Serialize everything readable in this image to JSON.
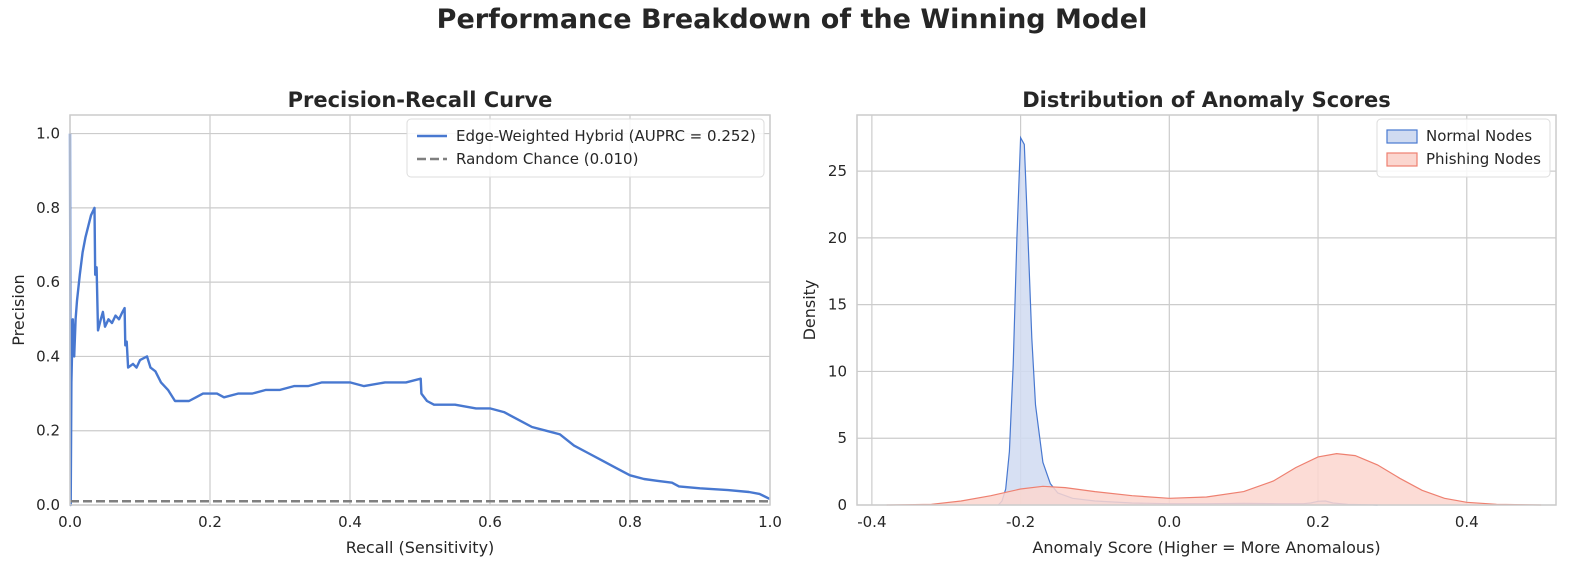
{
  "suptitle": "Performance Breakdown of the Winning Model",
  "chart_data": [
    {
      "type": "line",
      "title": "Precision-Recall Curve",
      "xlabel": "Recall (Sensitivity)",
      "ylabel": "Precision",
      "xlim": [
        0,
        1
      ],
      "ylim": [
        0,
        1.05
      ],
      "xticks": [
        "0.0",
        "0.2",
        "0.4",
        "0.6",
        "0.8",
        "1.0"
      ],
      "yticks": [
        "0.0",
        "0.2",
        "0.4",
        "0.6",
        "0.8",
        "1.0"
      ],
      "grid": true,
      "legend_position": "top-right",
      "series": [
        {
          "name": "Edge-Weighted Hybrid (AUPRC = 0.252)",
          "color": "#4878d0",
          "style": "solid",
          "points": [
            [
              0.0,
              1.0
            ],
            [
              0.001,
              0.0
            ],
            [
              0.002,
              0.33
            ],
            [
              0.004,
              0.5
            ],
            [
              0.006,
              0.4
            ],
            [
              0.008,
              0.5
            ],
            [
              0.01,
              0.55
            ],
            [
              0.014,
              0.62
            ],
            [
              0.018,
              0.68
            ],
            [
              0.022,
              0.72
            ],
            [
              0.026,
              0.75
            ],
            [
              0.03,
              0.78
            ],
            [
              0.035,
              0.8
            ],
            [
              0.036,
              0.62
            ],
            [
              0.038,
              0.64
            ],
            [
              0.04,
              0.47
            ],
            [
              0.044,
              0.5
            ],
            [
              0.047,
              0.52
            ],
            [
              0.05,
              0.48
            ],
            [
              0.055,
              0.5
            ],
            [
              0.06,
              0.49
            ],
            [
              0.065,
              0.51
            ],
            [
              0.07,
              0.5
            ],
            [
              0.075,
              0.52
            ],
            [
              0.078,
              0.53
            ],
            [
              0.079,
              0.43
            ],
            [
              0.081,
              0.44
            ],
            [
              0.083,
              0.37
            ],
            [
              0.09,
              0.38
            ],
            [
              0.095,
              0.37
            ],
            [
              0.1,
              0.39
            ],
            [
              0.11,
              0.4
            ],
            [
              0.115,
              0.37
            ],
            [
              0.122,
              0.36
            ],
            [
              0.13,
              0.33
            ],
            [
              0.14,
              0.31
            ],
            [
              0.15,
              0.28
            ],
            [
              0.16,
              0.28
            ],
            [
              0.17,
              0.28
            ],
            [
              0.18,
              0.29
            ],
            [
              0.19,
              0.3
            ],
            [
              0.2,
              0.3
            ],
            [
              0.21,
              0.3
            ],
            [
              0.22,
              0.29
            ],
            [
              0.24,
              0.3
            ],
            [
              0.26,
              0.3
            ],
            [
              0.28,
              0.31
            ],
            [
              0.3,
              0.31
            ],
            [
              0.32,
              0.32
            ],
            [
              0.34,
              0.32
            ],
            [
              0.36,
              0.33
            ],
            [
              0.38,
              0.33
            ],
            [
              0.4,
              0.33
            ],
            [
              0.42,
              0.32
            ],
            [
              0.45,
              0.33
            ],
            [
              0.48,
              0.33
            ],
            [
              0.501,
              0.34
            ],
            [
              0.502,
              0.3
            ],
            [
              0.51,
              0.28
            ],
            [
              0.52,
              0.27
            ],
            [
              0.55,
              0.27
            ],
            [
              0.58,
              0.26
            ],
            [
              0.6,
              0.26
            ],
            [
              0.62,
              0.25
            ],
            [
              0.64,
              0.23
            ],
            [
              0.66,
              0.21
            ],
            [
              0.68,
              0.2
            ],
            [
              0.7,
              0.19
            ],
            [
              0.72,
              0.16
            ],
            [
              0.74,
              0.14
            ],
            [
              0.76,
              0.12
            ],
            [
              0.78,
              0.1
            ],
            [
              0.8,
              0.08
            ],
            [
              0.82,
              0.07
            ],
            [
              0.84,
              0.065
            ],
            [
              0.86,
              0.06
            ],
            [
              0.87,
              0.05
            ],
            [
              0.9,
              0.045
            ],
            [
              0.94,
              0.04
            ],
            [
              0.97,
              0.035
            ],
            [
              0.985,
              0.03
            ],
            [
              1.0,
              0.016
            ]
          ]
        },
        {
          "name": "Random Chance (0.010)",
          "color": "#7f7f7f",
          "style": "dashed",
          "points": [
            [
              0.0,
              0.01
            ],
            [
              1.0,
              0.01
            ]
          ]
        }
      ]
    },
    {
      "type": "area",
      "title": "Distribution of Anomaly Scores",
      "xlabel": "Anomaly Score (Higher = More Anomalous)",
      "ylabel": "Density",
      "xlim": [
        -0.42,
        0.52
      ],
      "ylim": [
        0,
        29.2
      ],
      "xticks": [
        "-0.4",
        "-0.2",
        "0.0",
        "0.2",
        "0.4"
      ],
      "yticks": [
        "0",
        "5",
        "10",
        "15",
        "20",
        "25"
      ],
      "grid": true,
      "legend_position": "top-right",
      "series": [
        {
          "name": "Normal Nodes",
          "color": "#4878d0",
          "fill": "#d0dbf1",
          "points": [
            [
              -0.23,
              0.0
            ],
            [
              -0.225,
              0.3
            ],
            [
              -0.22,
              1.2
            ],
            [
              -0.215,
              4.0
            ],
            [
              -0.21,
              10.5
            ],
            [
              -0.205,
              20.0
            ],
            [
              -0.2,
              27.5
            ],
            [
              -0.195,
              27.0
            ],
            [
              -0.19,
              20.0
            ],
            [
              -0.185,
              12.5
            ],
            [
              -0.18,
              7.5
            ],
            [
              -0.17,
              3.2
            ],
            [
              -0.16,
              1.6
            ],
            [
              -0.15,
              0.9
            ],
            [
              -0.13,
              0.5
            ],
            [
              -0.1,
              0.3
            ],
            [
              -0.05,
              0.15
            ],
            [
              0.0,
              0.1
            ],
            [
              0.05,
              0.1
            ],
            [
              0.1,
              0.12
            ],
            [
              0.15,
              0.1
            ],
            [
              0.18,
              0.1
            ],
            [
              0.19,
              0.15
            ],
            [
              0.2,
              0.28
            ],
            [
              0.21,
              0.3
            ],
            [
              0.22,
              0.15
            ],
            [
              0.24,
              0.05
            ],
            [
              0.28,
              0.0
            ]
          ]
        },
        {
          "name": "Phishing Nodes",
          "color": "#ee8070",
          "fill": "#fbd6cf",
          "points": [
            [
              -0.38,
              0.0
            ],
            [
              -0.32,
              0.05
            ],
            [
              -0.28,
              0.3
            ],
            [
              -0.24,
              0.7
            ],
            [
              -0.2,
              1.2
            ],
            [
              -0.17,
              1.4
            ],
            [
              -0.14,
              1.3
            ],
            [
              -0.1,
              1.0
            ],
            [
              -0.05,
              0.7
            ],
            [
              0.0,
              0.5
            ],
            [
              0.05,
              0.6
            ],
            [
              0.1,
              1.0
            ],
            [
              0.14,
              1.8
            ],
            [
              0.17,
              2.8
            ],
            [
              0.2,
              3.6
            ],
            [
              0.225,
              3.85
            ],
            [
              0.25,
              3.7
            ],
            [
              0.28,
              3.0
            ],
            [
              0.31,
              2.0
            ],
            [
              0.34,
              1.1
            ],
            [
              0.37,
              0.5
            ],
            [
              0.4,
              0.2
            ],
            [
              0.44,
              0.05
            ],
            [
              0.5,
              0.0
            ]
          ]
        }
      ]
    }
  ]
}
